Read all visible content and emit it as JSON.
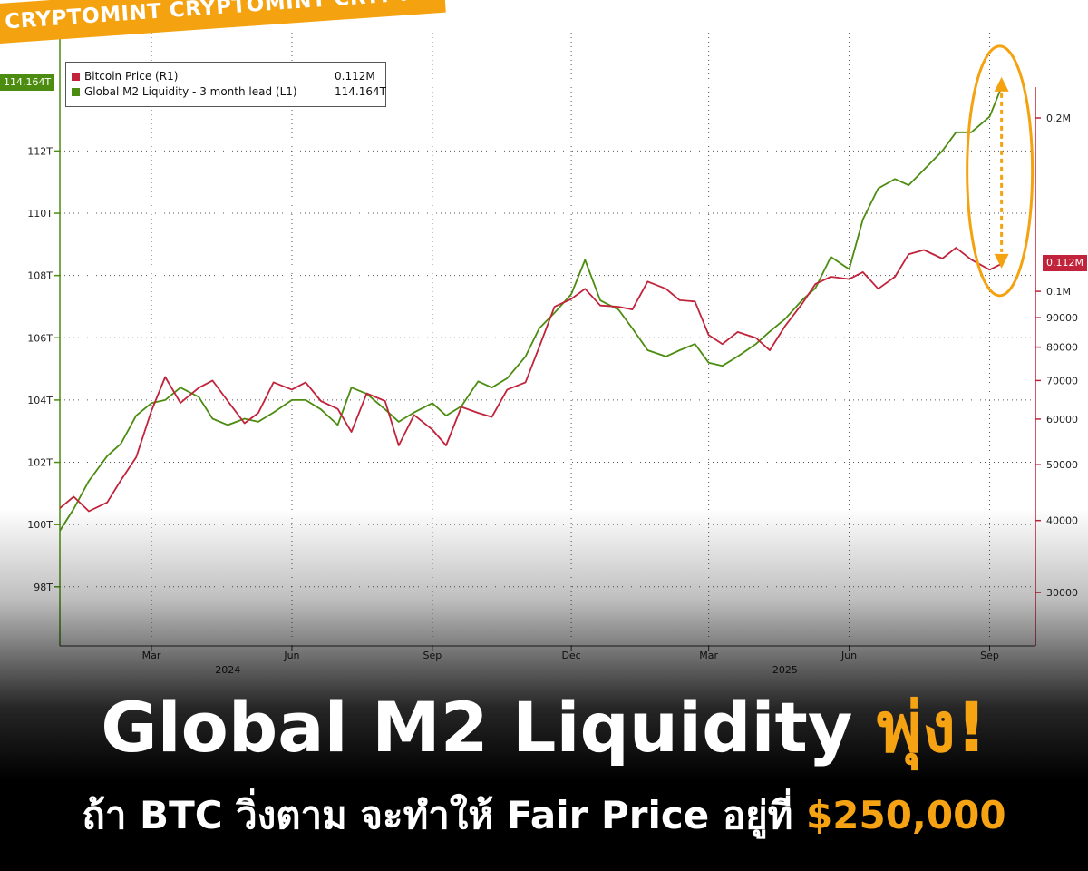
{
  "banner": {
    "text": "CRYPTOMINT CRYPTOMINT CRYPTOMINT CRYPTOMINT"
  },
  "headline": {
    "main": "Global M2 Liquidity ",
    "highlight": "พุ่ง!"
  },
  "subline": {
    "main": "ถ้า BTC วิ่งตาม จะทำให้ Fair Price อยู่ที่ ",
    "price": "$250,000"
  },
  "colors": {
    "btc": "#c0233a",
    "m2": "#4c8c10",
    "accent": "#f4a20f",
    "grid": "#555555"
  },
  "chart_data": {
    "type": "line",
    "legend": {
      "position": "top-left",
      "entries": [
        {
          "name": "Bitcoin Price (R1)",
          "value": "0.112M"
        },
        {
          "name": "Global M2 Liquidity - 3 month lead (L1)",
          "value": "114.164T"
        }
      ]
    },
    "last_value_tags": {
      "left": "114.164T",
      "right": "0.112M"
    },
    "x_axis": {
      "start": "2024-01-01",
      "end": "2025-10-01",
      "ticks": [
        {
          "date": "2024-03-01",
          "label": "Mar"
        },
        {
          "date": "2024-06-01",
          "label": "Jun"
        },
        {
          "date": "2024-09-01",
          "label": "Sep"
        },
        {
          "date": "2024-12-01",
          "label": "Dec"
        },
        {
          "date": "2025-03-01",
          "label": "Mar"
        },
        {
          "date": "2025-06-01",
          "label": "Jun"
        },
        {
          "date": "2025-09-01",
          "label": "Sep"
        }
      ],
      "years": [
        {
          "date": "2024-04-20",
          "label": "2024"
        },
        {
          "date": "2025-04-20",
          "label": "2025"
        }
      ]
    },
    "y_left": {
      "label": "",
      "range": [
        96.1,
        115.8
      ],
      "ticks": [
        98,
        100,
        102,
        104,
        106,
        108,
        110,
        112
      ],
      "tick_labels": [
        "98T",
        "100T",
        "102T",
        "104T",
        "106T",
        "108T",
        "110T",
        "112T"
      ]
    },
    "y_right": {
      "label": "",
      "scale": "log",
      "ticks": [
        30000,
        40000,
        50000,
        60000,
        70000,
        80000,
        90000,
        100000,
        200000
      ],
      "tick_labels": [
        "30000",
        "40000",
        "50000",
        "60000",
        "70000",
        "80000",
        "90000",
        "0.1M",
        "0.2M"
      ]
    },
    "series": [
      {
        "name": "Global M2 Liquidity - 3 month lead (L1)",
        "axis": "left",
        "points": [
          [
            "2024-01-01",
            99.8
          ],
          [
            "2024-01-10",
            100.5
          ],
          [
            "2024-01-20",
            101.4
          ],
          [
            "2024-02-01",
            102.2
          ],
          [
            "2024-02-10",
            102.6
          ],
          [
            "2024-02-20",
            103.5
          ],
          [
            "2024-03-01",
            103.9
          ],
          [
            "2024-03-10",
            104.0
          ],
          [
            "2024-03-20",
            104.4
          ],
          [
            "2024-04-01",
            104.1
          ],
          [
            "2024-04-10",
            103.4
          ],
          [
            "2024-04-20",
            103.2
          ],
          [
            "2024-05-01",
            103.4
          ],
          [
            "2024-05-10",
            103.3
          ],
          [
            "2024-05-20",
            103.6
          ],
          [
            "2024-06-01",
            104.0
          ],
          [
            "2024-06-10",
            104.0
          ],
          [
            "2024-06-20",
            103.7
          ],
          [
            "2024-07-01",
            103.2
          ],
          [
            "2024-07-10",
            104.4
          ],
          [
            "2024-07-20",
            104.2
          ],
          [
            "2024-08-01",
            103.7
          ],
          [
            "2024-08-10",
            103.3
          ],
          [
            "2024-08-20",
            103.6
          ],
          [
            "2024-09-01",
            103.9
          ],
          [
            "2024-09-10",
            103.5
          ],
          [
            "2024-09-20",
            103.8
          ],
          [
            "2024-10-01",
            104.6
          ],
          [
            "2024-10-10",
            104.4
          ],
          [
            "2024-10-20",
            104.7
          ],
          [
            "2024-11-01",
            105.4
          ],
          [
            "2024-11-10",
            106.3
          ],
          [
            "2024-11-20",
            106.8
          ],
          [
            "2024-12-01",
            107.4
          ],
          [
            "2024-12-10",
            108.5
          ],
          [
            "2024-12-20",
            107.2
          ],
          [
            "2025-01-01",
            106.9
          ],
          [
            "2025-01-10",
            106.3
          ],
          [
            "2025-01-20",
            105.6
          ],
          [
            "2025-02-01",
            105.4
          ],
          [
            "2025-02-10",
            105.6
          ],
          [
            "2025-02-20",
            105.8
          ],
          [
            "2025-03-01",
            105.2
          ],
          [
            "2025-03-10",
            105.1
          ],
          [
            "2025-03-20",
            105.4
          ],
          [
            "2025-04-01",
            105.8
          ],
          [
            "2025-04-10",
            106.2
          ],
          [
            "2025-04-20",
            106.6
          ],
          [
            "2025-05-01",
            107.2
          ],
          [
            "2025-05-10",
            107.6
          ],
          [
            "2025-05-20",
            108.6
          ],
          [
            "2025-06-01",
            108.2
          ],
          [
            "2025-06-10",
            109.8
          ],
          [
            "2025-06-20",
            110.8
          ],
          [
            "2025-07-01",
            111.1
          ],
          [
            "2025-07-10",
            110.9
          ],
          [
            "2025-07-20",
            111.4
          ],
          [
            "2025-08-01",
            112.0
          ],
          [
            "2025-08-10",
            112.6
          ],
          [
            "2025-08-20",
            112.6
          ],
          [
            "2025-09-01",
            113.1
          ],
          [
            "2025-09-10",
            114.2
          ]
        ]
      },
      {
        "name": "Bitcoin Price (R1)",
        "axis": "right",
        "points": [
          [
            "2024-01-01",
            42000
          ],
          [
            "2024-01-10",
            44000
          ],
          [
            "2024-01-20",
            41500
          ],
          [
            "2024-02-01",
            43000
          ],
          [
            "2024-02-10",
            47000
          ],
          [
            "2024-02-20",
            51500
          ],
          [
            "2024-03-01",
            62000
          ],
          [
            "2024-03-10",
            71000
          ],
          [
            "2024-03-20",
            64000
          ],
          [
            "2024-04-01",
            68000
          ],
          [
            "2024-04-10",
            70000
          ],
          [
            "2024-04-20",
            64500
          ],
          [
            "2024-05-01",
            59000
          ],
          [
            "2024-05-10",
            61500
          ],
          [
            "2024-05-20",
            69500
          ],
          [
            "2024-06-01",
            67500
          ],
          [
            "2024-06-10",
            69500
          ],
          [
            "2024-06-20",
            64500
          ],
          [
            "2024-07-01",
            62500
          ],
          [
            "2024-07-10",
            57000
          ],
          [
            "2024-07-20",
            66500
          ],
          [
            "2024-08-01",
            64500
          ],
          [
            "2024-08-10",
            54000
          ],
          [
            "2024-08-20",
            61000
          ],
          [
            "2024-09-01",
            57500
          ],
          [
            "2024-09-10",
            54000
          ],
          [
            "2024-09-20",
            63000
          ],
          [
            "2024-10-01",
            61500
          ],
          [
            "2024-10-10",
            60500
          ],
          [
            "2024-10-20",
            67500
          ],
          [
            "2024-11-01",
            69500
          ],
          [
            "2024-11-10",
            80000
          ],
          [
            "2024-11-20",
            94000
          ],
          [
            "2024-12-01",
            97000
          ],
          [
            "2024-12-10",
            101000
          ],
          [
            "2024-12-20",
            94500
          ],
          [
            "2025-01-01",
            94000
          ],
          [
            "2025-01-10",
            93000
          ],
          [
            "2025-01-20",
            104000
          ],
          [
            "2025-02-01",
            101000
          ],
          [
            "2025-02-10",
            96500
          ],
          [
            "2025-02-20",
            96000
          ],
          [
            "2025-03-01",
            84000
          ],
          [
            "2025-03-10",
            81000
          ],
          [
            "2025-03-20",
            85000
          ],
          [
            "2025-04-01",
            83000
          ],
          [
            "2025-04-10",
            79000
          ],
          [
            "2025-04-20",
            87000
          ],
          [
            "2025-05-01",
            95000
          ],
          [
            "2025-05-10",
            103000
          ],
          [
            "2025-05-20",
            106000
          ],
          [
            "2025-06-01",
            105000
          ],
          [
            "2025-06-10",
            108000
          ],
          [
            "2025-06-20",
            101000
          ],
          [
            "2025-07-01",
            106000
          ],
          [
            "2025-07-10",
            116000
          ],
          [
            "2025-07-20",
            118000
          ],
          [
            "2025-08-01",
            114000
          ],
          [
            "2025-08-10",
            119000
          ],
          [
            "2025-08-20",
            113500
          ],
          [
            "2025-09-01",
            109000
          ],
          [
            "2025-09-10",
            112000
          ]
        ]
      }
    ],
    "grid": true,
    "annotation": {
      "type": "ellipse",
      "color": "#f4a20f",
      "desc": "gap highlight"
    }
  }
}
